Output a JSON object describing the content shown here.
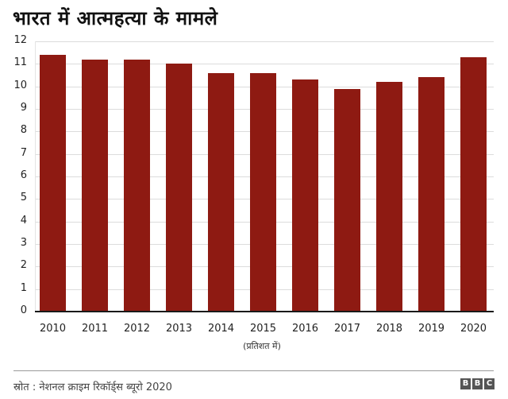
{
  "header": {
    "title": "भारत में आत्महत्या के मामले"
  },
  "chart_data": {
    "type": "bar",
    "title": "भारत में आत्महत्या के मामले",
    "xlabel": "(प्रतिशत में)",
    "ylabel": "",
    "categories": [
      "2010",
      "2011",
      "2012",
      "2013",
      "2014",
      "2015",
      "2016",
      "2017",
      "2018",
      "2019",
      "2020"
    ],
    "values": [
      11.4,
      11.2,
      11.2,
      11.0,
      10.6,
      10.6,
      10.3,
      9.9,
      10.2,
      10.4,
      11.3
    ],
    "ylim": [
      0,
      12
    ],
    "yticks": [
      "0",
      "1",
      "2",
      "3",
      "4",
      "5",
      "6",
      "7",
      "8",
      "9",
      "10",
      "11",
      "12"
    ],
    "grid": true,
    "legend": "none",
    "bar_color": "#8E1A12"
  },
  "footer": {
    "source": "स्रोत : नेशनल क्राइम रिकॉर्ड्स ब्यूरो 2020",
    "logo": [
      "B",
      "B",
      "C"
    ]
  }
}
